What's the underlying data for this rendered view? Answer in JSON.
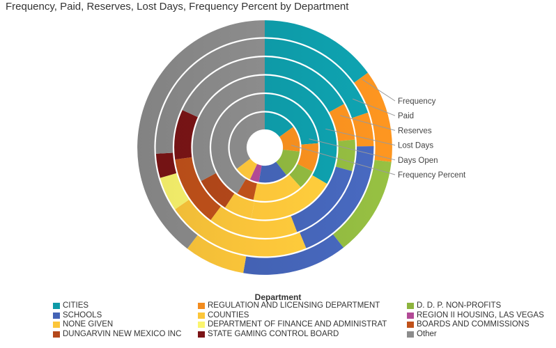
{
  "chart_data": {
    "type": "multi-ring donut",
    "title": "Frequency, Paid, Reserves, Lost Days, Frequency Percent by Department",
    "rings_outer_to_inner": [
      "Frequency",
      "Paid",
      "Reserves",
      "Lost Days",
      "Days Open",
      "Frequency Percent"
    ],
    "legend_title": "Department",
    "categories": [
      "CITIES",
      "REGULATION AND LICENSING DEPARTMENT",
      "D. D. P. NON-PROFITS",
      "SCHOOLS",
      "COUNTIES",
      "REGION II HOUSING, LAS VEGAS",
      "NONE GIVEN",
      "DEPARTMENT OF FINANCE AND ADMINISTRAT",
      "BOARDS AND COMMISSIONS",
      "DUNGARVIN NEW MEXICO INC",
      "STATE GAMING CONTROL BOARD",
      "Other"
    ],
    "colors": [
      "#0e9aa7",
      "#f28c1e",
      "#8db43e",
      "#4463b5",
      "#fcc63a",
      "#b24a96",
      "#fcc63a",
      "#fbf56e",
      "#c0511a",
      "#b4481a",
      "#7b1416",
      "#8c8c8c"
    ],
    "series": [
      {
        "name": "Frequency",
        "values": [
          15.0,
          11.8,
          12.6,
          13.3,
          0,
          0,
          7.7,
          0,
          0,
          0,
          0,
          39.6
        ]
      },
      {
        "name": "Paid",
        "values": [
          19.8,
          5.0,
          0,
          19.0,
          21.6,
          0,
          0,
          5.1,
          0,
          0,
          3.6,
          25.9
        ]
      },
      {
        "name": "Reserves",
        "values": [
          17.0,
          6.6,
          5.6,
          15.0,
          16.0,
          0,
          0,
          0,
          12.7,
          0,
          8.9,
          18.2
        ]
      },
      {
        "name": "Lost Days",
        "values": [
          33.4,
          0,
          0,
          0,
          19.6,
          0,
          6.3,
          0,
          0,
          8.0,
          0,
          32.7
        ]
      },
      {
        "name": "Days Open",
        "values": [
          23.7,
          8.7,
          5.9,
          0,
          0,
          0,
          15.1,
          0,
          5.2,
          0,
          0,
          41.4
        ]
      },
      {
        "name": "Frequency Percent",
        "values": [
          15.0,
          11.8,
          12.6,
          13.3,
          0,
          4.2,
          7.7,
          0,
          0,
          0,
          0,
          35.4
        ]
      }
    ]
  }
}
